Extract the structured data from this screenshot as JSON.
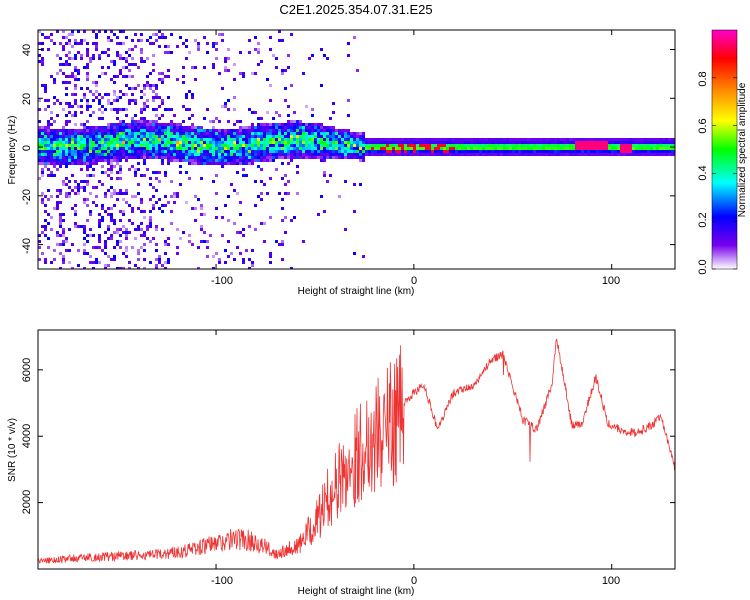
{
  "title": "C2E1.2025.354.07.31.E25",
  "chart_data": [
    {
      "type": "heatmap",
      "xlabel": "Height of straight line (km)",
      "ylabel": "Frequency (Hz)",
      "xlim": [
        -190,
        132
      ],
      "ylim": [
        -50,
        48
      ],
      "xticks": [
        -100,
        0,
        100
      ],
      "xtick_labels": [
        "-100",
        "0",
        "100"
      ],
      "yticks": [
        -40,
        -20,
        0,
        20,
        40
      ],
      "ytick_labels": [
        "-40",
        "-20",
        "0",
        "20",
        "40"
      ],
      "colorbar": {
        "label": "Normalized spectral amplitude",
        "range": [
          0,
          1
        ],
        "ticks": [
          0,
          0.2,
          0.4,
          0.6,
          0.8
        ],
        "tick_labels": [
          "0.0",
          "0.2",
          "0.4",
          "0.6",
          "0.8"
        ],
        "colormap": [
          "#ffffff",
          "#7700ee",
          "#0000ff",
          "#00ffff",
          "#00ff00",
          "#ffff00",
          "#ff8800",
          "#ff0000",
          "#ff00cc"
        ]
      },
      "features": [
        {
          "x_range": [
            -190,
            -25
          ],
          "f_center": 2,
          "f_halfwidth": 6,
          "amp": 0.35,
          "note": "broad noisy band"
        },
        {
          "x_range": [
            -25,
            132
          ],
          "f_center": 0.5,
          "f_halfwidth": 2,
          "amp": 0.55,
          "note": "narrow carrier"
        },
        {
          "x_range": [
            80,
            98
          ],
          "f_center": 1,
          "f_halfwidth": 1.2,
          "amp": 0.95
        },
        {
          "x_range": [
            103,
            110
          ],
          "f_center": 0,
          "f_halfwidth": 1,
          "amp": 0.95
        },
        {
          "x_range": [
            -22,
            22
          ],
          "f_center": 0,
          "f_halfwidth": 1,
          "amp": 0.9,
          "note": "red dots along carrier"
        }
      ]
    },
    {
      "type": "line",
      "xlabel": "Height of straight line (km)",
      "ylabel": "SNR (10 * v/v)",
      "xlim": [
        -190,
        132
      ],
      "ylim": [
        0,
        7200
      ],
      "xticks": [
        -100,
        0,
        100
      ],
      "xtick_labels": [
        "-100",
        "0",
        "100"
      ],
      "yticks": [
        2000,
        4000,
        6000
      ],
      "ytick_labels": [
        "2000",
        "4000",
        "6000"
      ],
      "color": "#ee3333",
      "series": [
        {
          "name": "SNR",
          "x": [
            -190,
            -170,
            -150,
            -130,
            -115,
            -100,
            -90,
            -80,
            -70,
            -60,
            -50,
            -42,
            -35,
            -25,
            -15,
            -5,
            5,
            12,
            20,
            30,
            38,
            45,
            50,
            55,
            62,
            70,
            72,
            80,
            85,
            92,
            98,
            105,
            112,
            120,
            125,
            132
          ],
          "y": [
            200,
            280,
            330,
            360,
            480,
            650,
            780,
            700,
            400,
            600,
            1400,
            2400,
            3000,
            3900,
            4400,
            5000,
            5600,
            4200,
            5300,
            5500,
            6200,
            6500,
            5500,
            4500,
            4200,
            5600,
            7000,
            4300,
            4400,
            5800,
            4400,
            4200,
            4100,
            4300,
            4600,
            3000
          ]
        }
      ]
    }
  ]
}
